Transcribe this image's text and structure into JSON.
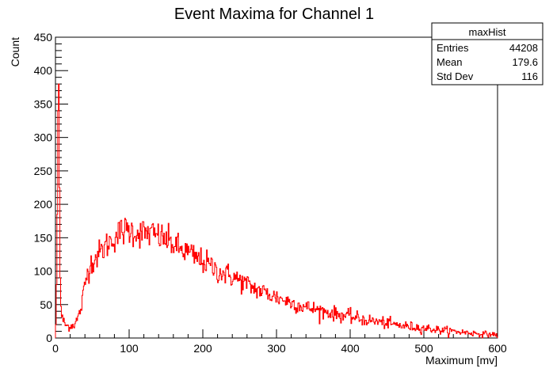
{
  "chart_data": {
    "type": "histogram",
    "title": "Event Maxima for Channel 1",
    "xlabel": "Maximum [mv]",
    "ylabel": "Count",
    "xlim": [
      0,
      600
    ],
    "ylim": [
      0,
      450
    ],
    "x_ticks": [
      0,
      100,
      200,
      300,
      400,
      500,
      600
    ],
    "y_ticks": [
      0,
      50,
      100,
      150,
      200,
      250,
      300,
      350,
      400,
      450
    ],
    "grid": false,
    "line_color": "#ff0000",
    "bin_width": 1,
    "profile_points": [
      [
        0,
        0
      ],
      [
        1,
        40
      ],
      [
        2,
        120
      ],
      [
        3,
        250
      ],
      [
        4,
        430
      ],
      [
        5,
        330
      ],
      [
        6,
        120
      ],
      [
        7,
        60
      ],
      [
        8,
        35
      ],
      [
        10,
        28
      ],
      [
        12,
        22
      ],
      [
        15,
        18
      ],
      [
        20,
        18
      ],
      [
        25,
        20
      ],
      [
        30,
        28
      ],
      [
        35,
        45
      ],
      [
        40,
        80
      ],
      [
        45,
        105
      ],
      [
        50,
        115
      ],
      [
        60,
        127
      ],
      [
        70,
        140
      ],
      [
        80,
        150
      ],
      [
        90,
        160
      ],
      [
        100,
        161
      ],
      [
        110,
        158
      ],
      [
        120,
        157
      ],
      [
        130,
        156
      ],
      [
        140,
        152
      ],
      [
        150,
        147
      ],
      [
        160,
        140
      ],
      [
        170,
        132
      ],
      [
        180,
        128
      ],
      [
        190,
        120
      ],
      [
        200,
        115
      ],
      [
        210,
        108
      ],
      [
        220,
        100
      ],
      [
        230,
        96
      ],
      [
        240,
        92
      ],
      [
        250,
        86
      ],
      [
        260,
        80
      ],
      [
        270,
        74
      ],
      [
        280,
        70
      ],
      [
        290,
        65
      ],
      [
        300,
        61
      ],
      [
        320,
        53
      ],
      [
        340,
        46
      ],
      [
        360,
        41
      ],
      [
        380,
        36
      ],
      [
        400,
        32
      ],
      [
        420,
        27
      ],
      [
        440,
        24
      ],
      [
        460,
        20
      ],
      [
        480,
        17
      ],
      [
        500,
        15
      ],
      [
        520,
        12
      ],
      [
        540,
        10
      ],
      [
        560,
        8
      ],
      [
        580,
        6
      ],
      [
        600,
        5
      ]
    ],
    "stats_box": {
      "name": "maxHist",
      "rows": [
        {
          "label": "Entries",
          "value": "44208"
        },
        {
          "label": "Mean",
          "value": "179.6"
        },
        {
          "label": "Std Dev",
          "value": "116"
        }
      ]
    }
  }
}
